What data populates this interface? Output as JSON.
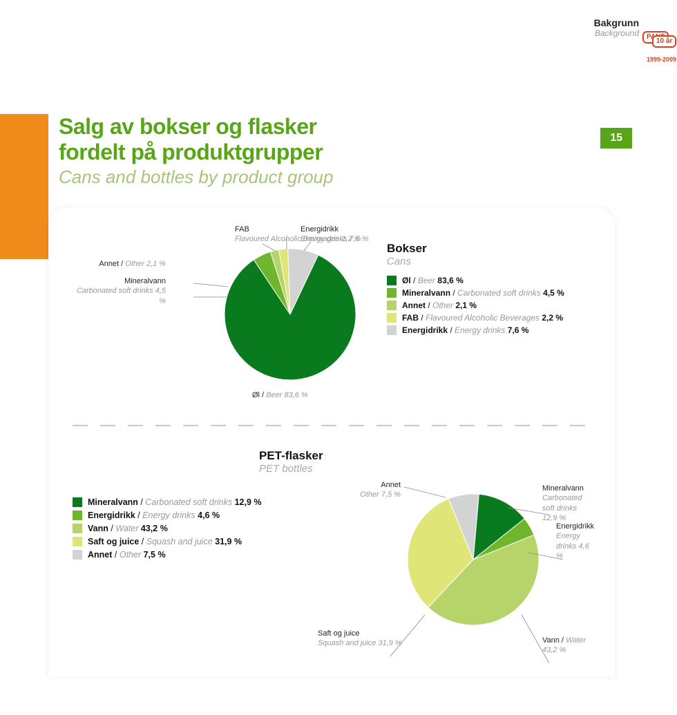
{
  "header": {
    "bakgrunn": "Bakgrunn",
    "background": "Background",
    "pant_text": "PANT",
    "pant_years": "10 år",
    "pant_range": "1999-2009"
  },
  "title": {
    "line1": "Salg av bokser og flasker",
    "line2": "fordelt på produktgrupper",
    "sub": "Cans and bottles by product group",
    "page": "15"
  },
  "chart1": {
    "title": "Bokser",
    "title_sub": "Cans",
    "slices": [
      {
        "label_no": "Øl",
        "label_en": "Beer",
        "pct": 83.6,
        "color": "#0a7a1e"
      },
      {
        "label_no": "Mineralvann",
        "label_en": "Carbonated soft drinks",
        "pct": 4.5,
        "color": "#6fb52e"
      },
      {
        "label_no": "Annet",
        "label_en": "Other",
        "pct": 2.1,
        "color": "#b7d46a"
      },
      {
        "label_no": "FAB",
        "label_en": "Flavoured Alcoholic Beverages",
        "pct": 2.2,
        "color": "#e0e578"
      },
      {
        "label_no": "Energidrikk",
        "label_en": "Energy drinks",
        "pct": 7.6,
        "color": "#d3d3d3"
      }
    ],
    "callouts": {
      "annet": {
        "no": "Annet /",
        "en": "Other 2,1 %"
      },
      "mineral": {
        "no": "Mineralvann",
        "en": "Carbonated soft drinks 4,5 %"
      },
      "fab": {
        "no": "FAB",
        "en": "Flavoured Alcoholic Beverages 2,2 %"
      },
      "energi": {
        "no": "Energidrikk",
        "en": "Energy drinks 7,6 %"
      },
      "ol": {
        "no": "Øl /",
        "en": "Beer 83,6 %"
      }
    },
    "legend": [
      {
        "color": "#0a7a1e",
        "no": "Øl",
        "en": "Beer",
        "pct": "83,6 %"
      },
      {
        "color": "#6fb52e",
        "no": "Mineralvann",
        "en": "Carbonated soft drinks",
        "pct": "4,5 %"
      },
      {
        "color": "#b7d46a",
        "no": "Annet",
        "en": "Other",
        "pct": "2,1 %"
      },
      {
        "color": "#e0e578",
        "no": "FAB",
        "en": "Flavoured Alcoholic Beverages",
        "pct": "2,2 %"
      },
      {
        "color": "#d3d3d3",
        "no": "Energidrikk",
        "en": "Energy drinks",
        "pct": "7,6 %"
      }
    ]
  },
  "chart2": {
    "title": "PET-flasker",
    "title_sub": "PET bottles",
    "slices": [
      {
        "label_no": "Mineralvann",
        "label_en": "Carbonated soft drinks",
        "pct": 12.9,
        "color": "#0a7a1e"
      },
      {
        "label_no": "Energidrikk",
        "label_en": "Energy drinks",
        "pct": 4.6,
        "color": "#6fb52e"
      },
      {
        "label_no": "Vann",
        "label_en": "Water",
        "pct": 43.2,
        "color": "#b7d46a"
      },
      {
        "label_no": "Saft og juice",
        "label_en": "Squash and juice",
        "pct": 31.9,
        "color": "#e0e578"
      },
      {
        "label_no": "Annet",
        "label_en": "Other",
        "pct": 7.5,
        "color": "#d3d3d3"
      }
    ],
    "callouts": {
      "annet": {
        "no": "Annet",
        "en": "Other 7,5 %"
      },
      "mineral": {
        "no": "Mineralvann",
        "en": "Carbonated soft drinks 12,9 %"
      },
      "energi": {
        "no": "Energidrikk",
        "en": "Energy drinks 4,6 %"
      },
      "vann": {
        "no": "Vann /",
        "en": "Water 43,2 %"
      },
      "saft": {
        "no": "Saft og juice",
        "en": "Squash and juice 31,9 %"
      }
    },
    "legend": [
      {
        "color": "#0a7a1e",
        "no": "Mineralvann",
        "en": "Carbonated soft drinks",
        "pct": "12,9 %"
      },
      {
        "color": "#6fb52e",
        "no": "Energidrikk",
        "en": "Energy drinks",
        "pct": "4,6 %"
      },
      {
        "color": "#b7d46a",
        "no": "Vann",
        "en": "Water",
        "pct": "43,2 %"
      },
      {
        "color": "#e0e578",
        "no": "Saft og juice",
        "en": "Squash and juice",
        "pct": "31,9 %"
      },
      {
        "color": "#d3d3d3",
        "no": "Annet",
        "en": "Other",
        "pct": "7,5 %"
      }
    ]
  }
}
